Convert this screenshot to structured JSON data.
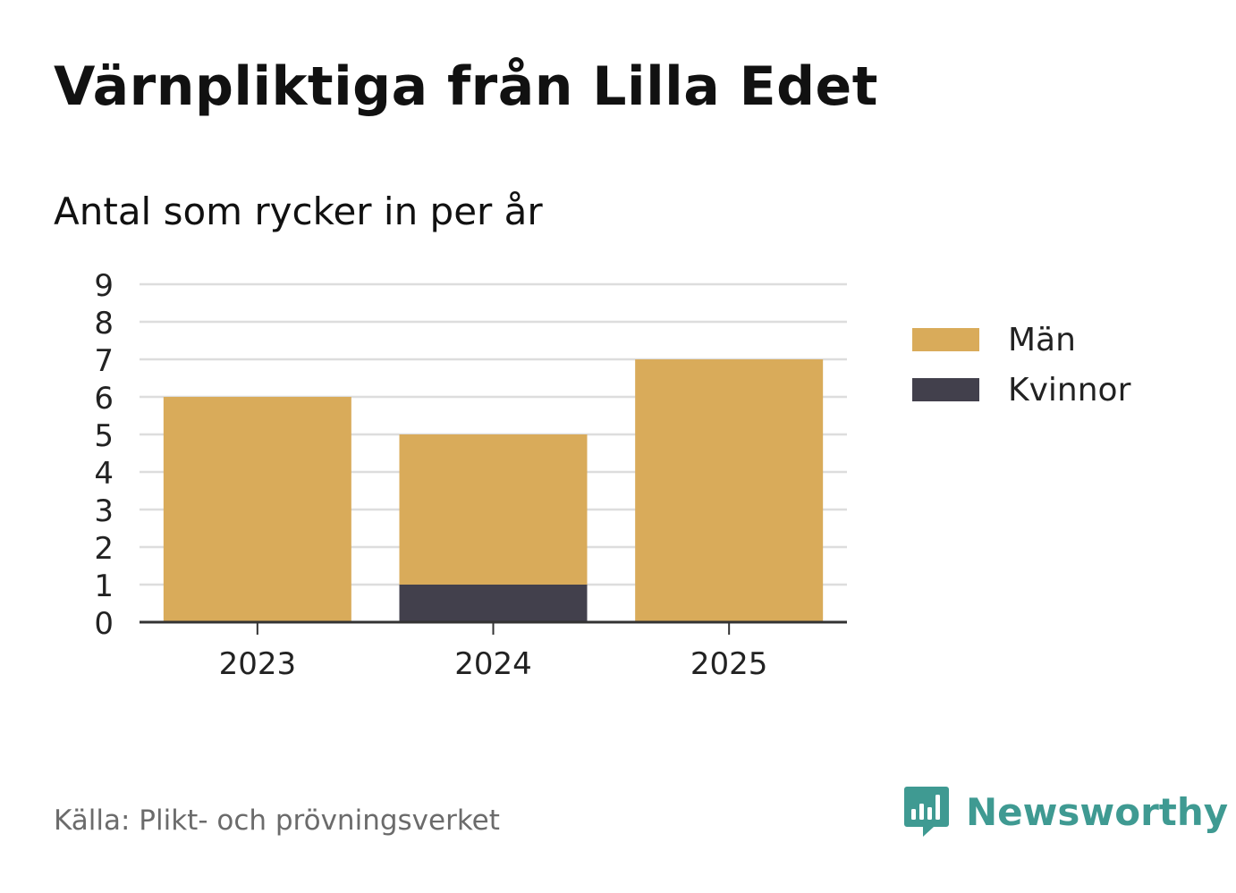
{
  "title": "Värnpliktiga från Lilla Edet",
  "subtitle": "Antal som rycker in per år",
  "source": "Källa: Plikt- och prövningsverket",
  "brand": "Newsworthy",
  "colors": {
    "man": "#d9ab5a",
    "kvinnor": "#42404c",
    "grid": "#dddddd",
    "axis": "#333333",
    "brand": "#3f9a92"
  },
  "chart_data": {
    "type": "bar",
    "stacked": true,
    "title": "Värnpliktiga från Lilla Edet",
    "subtitle": "Antal som rycker in per år",
    "xlabel": "",
    "ylabel": "",
    "ylim": [
      0,
      9
    ],
    "yticks": [
      0,
      1,
      2,
      3,
      4,
      5,
      6,
      7,
      8,
      9
    ],
    "categories": [
      "2023",
      "2024",
      "2025"
    ],
    "series": [
      {
        "name": "Kvinnor",
        "color": "#42404c",
        "values": [
          0,
          1,
          0
        ]
      },
      {
        "name": "Män",
        "color": "#d9ab5a",
        "values": [
          6,
          4,
          7
        ]
      }
    ],
    "legend": {
      "position": "right",
      "entries": [
        {
          "label": "Män",
          "color": "#d9ab5a"
        },
        {
          "label": "Kvinnor",
          "color": "#42404c"
        }
      ]
    },
    "grid": true
  }
}
